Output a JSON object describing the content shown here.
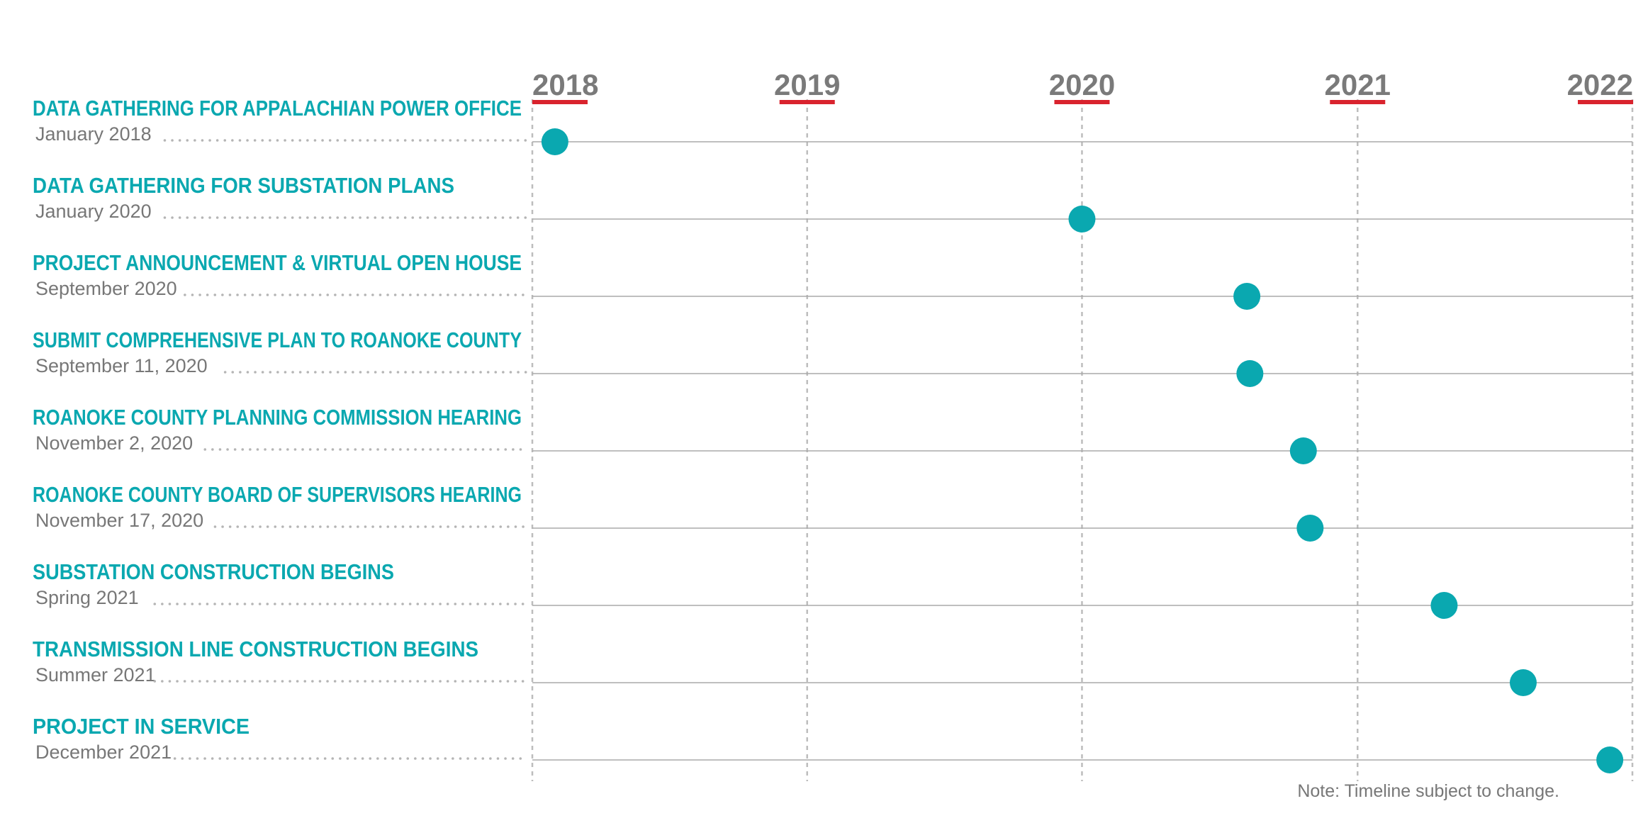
{
  "chart_data": {
    "type": "scatter",
    "title": "",
    "xlabel": "",
    "ylabel": "",
    "x_ticks": [
      "2018",
      "2019",
      "2020",
      "2021",
      "2022"
    ],
    "xlim": [
      "2018-01-01",
      "2022-01-01"
    ],
    "grid": true,
    "events": [
      {
        "name": "DATA GATHERING FOR APPALACHIAN POWER OFFICE",
        "date_label": "January 2018",
        "x": "2018-01-31"
      },
      {
        "name": "DATA GATHERING FOR SUBSTATION PLANS",
        "date_label": "January 2020",
        "x": "2020-01-01"
      },
      {
        "name": "PROJECT ANNOUNCEMENT & VIRTUAL OPEN HOUSE",
        "date_label": "September 2020",
        "x": "2020-08-07"
      },
      {
        "name": "SUBMIT COMPREHENSIVE PLAN TO ROANOKE COUNTY",
        "date_label": "September 11, 2020",
        "x": "2020-08-11"
      },
      {
        "name": "ROANOKE COUNTY PLANNING COMMISSION HEARING",
        "date_label": "November 2, 2020",
        "x": "2020-10-21"
      },
      {
        "name": "ROANOKE COUNTY BOARD OF SUPERVISORS HEARING",
        "date_label": "November 17, 2020",
        "x": "2020-10-30"
      },
      {
        "name": "SUBSTATION CONSTRUCTION BEGINS",
        "date_label": "Spring 2021",
        "x": "2021-04-26"
      },
      {
        "name": "TRANSMISSION LINE CONSTRUCTION BEGINS",
        "date_label": "Summer 2021",
        "x": "2021-08-09"
      },
      {
        "name": "PROJECT IN SERVICE",
        "date_label": "December 2021",
        "x": "2021-12-02"
      }
    ],
    "note": "Note: Timeline subject to change."
  },
  "colors": {
    "accent": "#0aa8b0",
    "year_underline": "#d9232e",
    "year_text": "#7a7a7a",
    "date_text": "#777777",
    "grid": "#bdbdbd",
    "row_line": "#aaaaaa",
    "leader": "#b5b5b5"
  }
}
